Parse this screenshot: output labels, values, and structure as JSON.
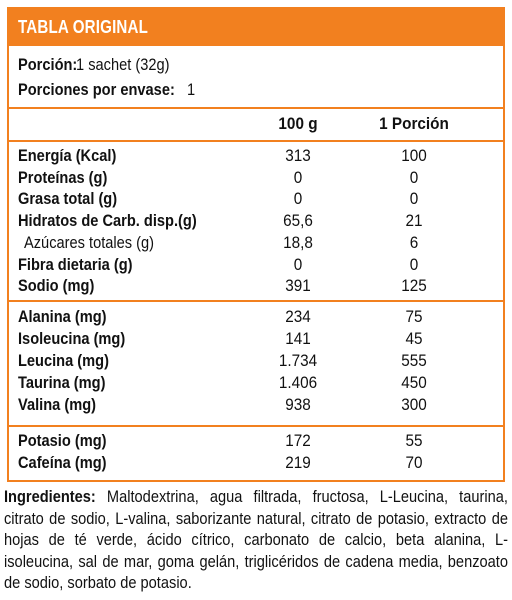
{
  "title": "TABLA ORIGINAL",
  "serving": {
    "portion_label": "Porción:",
    "portion_value": "1 sachet (32g)",
    "per_pack_label": "Porciones por envase:",
    "per_pack_value": "1"
  },
  "columns": {
    "per100": "100 g",
    "perPortion": "1 Porción"
  },
  "group1": [
    {
      "label": "Energía (Kcal)",
      "v100": "313",
      "vp": "100"
    },
    {
      "label": "Proteínas (g)",
      "v100": "0",
      "vp": "0"
    },
    {
      "label": "Grasa total (g)",
      "v100": "0",
      "vp": "0"
    },
    {
      "label": "Hidratos de Carb. disp.(g)",
      "v100": "65,6",
      "vp": "21"
    },
    {
      "label": "Azúcares totales (g)",
      "v100": "18,8",
      "vp": "6"
    },
    {
      "label": "Fibra dietaria (g)",
      "v100": "0",
      "vp": "0"
    },
    {
      "label": "Sodio (mg)",
      "v100": "391",
      "vp": "125"
    }
  ],
  "group2": [
    {
      "label": "Alanina (mg)",
      "v100": "234",
      "vp": "75"
    },
    {
      "label": "Isoleucina (mg)",
      "v100": "141",
      "vp": "45"
    },
    {
      "label": "Leucina (mg)",
      "v100": "1.734",
      "vp": "555"
    },
    {
      "label": "Taurina (mg)",
      "v100": "1.406",
      "vp": "450"
    },
    {
      "label": "Valina (mg)",
      "v100": "938",
      "vp": "300"
    }
  ],
  "group3": [
    {
      "label": "Potasio (mg)",
      "v100": "172",
      "vp": "55"
    },
    {
      "label": "Cafeína (mg)",
      "v100": "219",
      "vp": "70"
    }
  ],
  "ingredients": {
    "label": "Ingredientes:",
    "text": "Maltodextrina, agua filtrada, fructosa, L-Leucina, taurina, citrato de sodio, L-valina, saborizante natural, citrato de potasio, extracto de hojas de té verde, ácido cítrico, carbonato de calcio, beta alanina, L-isoleucina, sal de mar, goma gelán, triglicéridos de cadena media, benzoato de sodio, sorbato de potasio."
  },
  "colors": {
    "accent": "#f2801f",
    "text": "#111111"
  }
}
